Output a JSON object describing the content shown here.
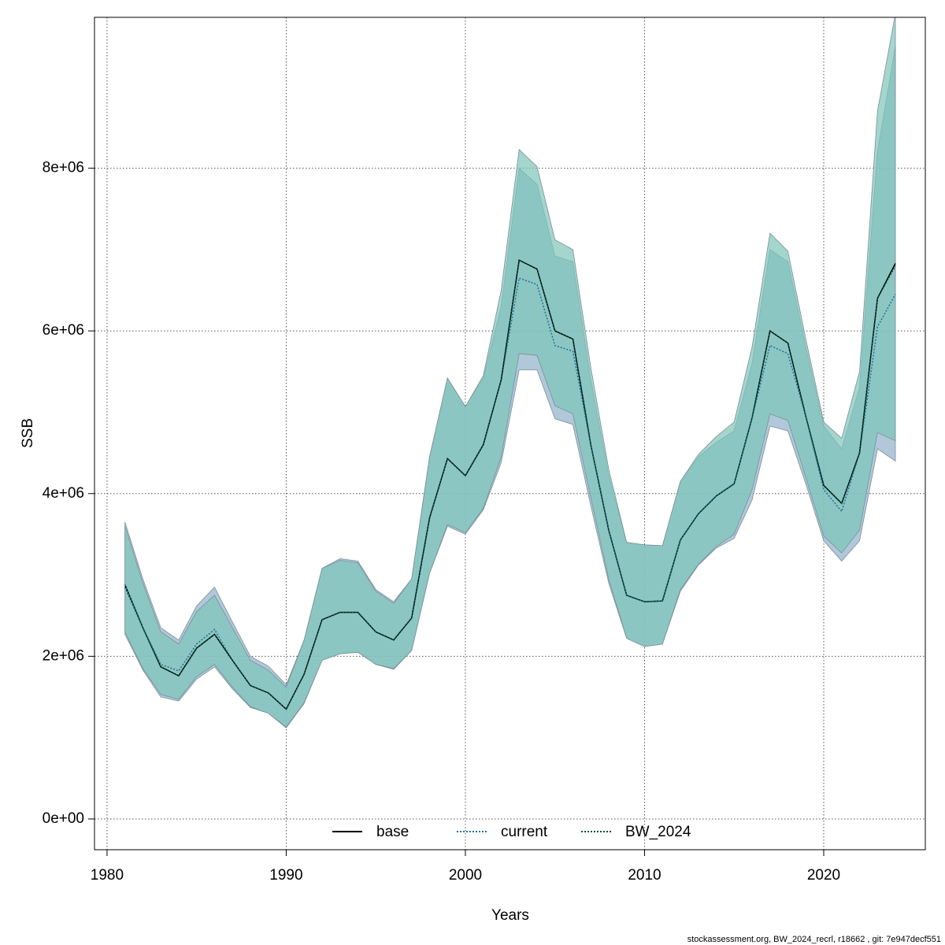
{
  "chart_data": {
    "type": "line",
    "xlabel": "Years",
    "ylabel": "SSB",
    "footnote": "stockassessment.org, BW_2024_recrl, r18662 , git: 7e947decf551",
    "x": [
      1981,
      1982,
      1983,
      1984,
      1985,
      1986,
      1987,
      1988,
      1989,
      1990,
      1991,
      1992,
      1993,
      1994,
      1995,
      1996,
      1997,
      1998,
      1999,
      2000,
      2001,
      2002,
      2003,
      2004,
      2005,
      2006,
      2007,
      2008,
      2009,
      2010,
      2011,
      2012,
      2013,
      2014,
      2015,
      2016,
      2017,
      2018,
      2019,
      2020,
      2021,
      2022,
      2023,
      2024
    ],
    "xlim": [
      1979.3,
      2025.67
    ],
    "xticks": [
      1980,
      1990,
      2000,
      2010,
      2020
    ],
    "ylim": [
      -378000,
      9855000
    ],
    "yticks": [
      {
        "value": 0,
        "label": "0e+00"
      },
      {
        "value": 2000000,
        "label": "2e+06"
      },
      {
        "value": 4000000,
        "label": "4e+06"
      },
      {
        "value": 6000000,
        "label": "6e+06"
      },
      {
        "value": 8000000,
        "label": "8e+06"
      }
    ],
    "grid": true,
    "legend": "bottom",
    "series": [
      {
        "name": "base",
        "color": "#000000",
        "dash": "solid",
        "values": [
          2880000,
          2350000,
          1870000,
          1760000,
          2100000,
          2270000,
          1950000,
          1640000,
          1550000,
          1350000,
          1780000,
          2450000,
          2540000,
          2540000,
          2300000,
          2200000,
          2470000,
          3700000,
          4430000,
          4220000,
          4600000,
          5400000,
          6870000,
          6760000,
          6000000,
          5900000,
          4600000,
          3550000,
          2750000,
          2670000,
          2680000,
          3430000,
          3750000,
          3970000,
          4120000,
          4930000,
          6000000,
          5850000,
          4950000,
          4100000,
          3880000,
          4500000,
          6400000,
          6830000
        ]
      },
      {
        "name": "current",
        "color": "#1f6f9a",
        "dash": "dotted",
        "band_color": "#8fb1c9",
        "values": [
          2880000,
          2350000,
          1900000,
          1820000,
          2150000,
          2330000,
          1950000,
          1640000,
          1550000,
          1350000,
          1780000,
          2450000,
          2540000,
          2540000,
          2300000,
          2200000,
          2470000,
          3700000,
          4430000,
          4220000,
          4600000,
          5400000,
          6650000,
          6570000,
          5820000,
          5750000,
          4600000,
          3550000,
          2750000,
          2670000,
          2680000,
          3430000,
          3750000,
          3970000,
          4120000,
          4930000,
          5820000,
          5720000,
          4950000,
          4050000,
          3780000,
          4500000,
          6050000,
          6450000
        ],
        "lower": [
          2270000,
          1830000,
          1500000,
          1450000,
          1720000,
          1870000,
          1600000,
          1370000,
          1300000,
          1120000,
          1420000,
          1950000,
          2030000,
          2050000,
          1900000,
          1840000,
          2070000,
          3020000,
          3600000,
          3500000,
          3800000,
          4380000,
          5520000,
          5520000,
          4920000,
          4850000,
          3850000,
          2900000,
          2220000,
          2120000,
          2150000,
          2800000,
          3120000,
          3330000,
          3450000,
          3920000,
          4830000,
          4770000,
          4120000,
          3420000,
          3170000,
          3420000,
          4550000,
          4400000
        ],
        "upper": [
          3650000,
          2950000,
          2350000,
          2200000,
          2620000,
          2850000,
          2420000,
          2000000,
          1880000,
          1650000,
          2200000,
          3080000,
          3200000,
          3170000,
          2820000,
          2670000,
          2950000,
          4450000,
          5420000,
          5070000,
          5420000,
          6300000,
          8000000,
          7800000,
          6920000,
          6850000,
          5400000,
          4220000,
          3400000,
          3370000,
          3360000,
          4150000,
          4450000,
          4630000,
          4770000,
          5600000,
          7000000,
          6850000,
          5800000,
          4830000,
          4550000,
          5300000,
          8200000,
          9500000
        ]
      },
      {
        "name": "BW_2024",
        "color": "#0b4d3c",
        "dash": "dotted",
        "band_color": "#7ec4b8",
        "values": [
          2850000,
          2350000,
          1870000,
          1760000,
          2100000,
          2270000,
          1950000,
          1640000,
          1550000,
          1350000,
          1780000,
          2450000,
          2540000,
          2540000,
          2300000,
          2200000,
          2470000,
          3700000,
          4430000,
          4220000,
          4600000,
          5400000,
          6870000,
          6760000,
          6000000,
          5900000,
          4600000,
          3550000,
          2750000,
          2670000,
          2680000,
          3430000,
          3750000,
          3970000,
          4120000,
          4930000,
          6000000,
          5850000,
          4950000,
          4100000,
          3880000,
          4500000,
          6400000,
          6800000
        ],
        "lower": [
          2300000,
          1850000,
          1530000,
          1470000,
          1750000,
          1900000,
          1620000,
          1380000,
          1300000,
          1130000,
          1430000,
          1950000,
          2030000,
          2050000,
          1900000,
          1850000,
          2070000,
          3020000,
          3620000,
          3520000,
          3820000,
          4450000,
          5720000,
          5700000,
          5080000,
          4980000,
          3950000,
          2950000,
          2220000,
          2120000,
          2150000,
          2820000,
          3130000,
          3350000,
          3500000,
          4050000,
          4980000,
          4900000,
          4200000,
          3480000,
          3270000,
          3550000,
          4750000,
          4650000
        ],
        "upper": [
          3600000,
          2900000,
          2300000,
          2150000,
          2550000,
          2750000,
          2350000,
          1950000,
          1830000,
          1620000,
          2200000,
          3080000,
          3180000,
          3150000,
          2800000,
          2650000,
          2950000,
          4450000,
          5420000,
          5070000,
          5450000,
          6500000,
          8230000,
          8020000,
          7120000,
          7000000,
          5550000,
          4300000,
          3400000,
          3370000,
          3360000,
          4150000,
          4480000,
          4700000,
          4880000,
          5800000,
          7200000,
          6980000,
          5900000,
          4880000,
          4680000,
          5500000,
          8700000,
          9900000
        ]
      }
    ]
  }
}
